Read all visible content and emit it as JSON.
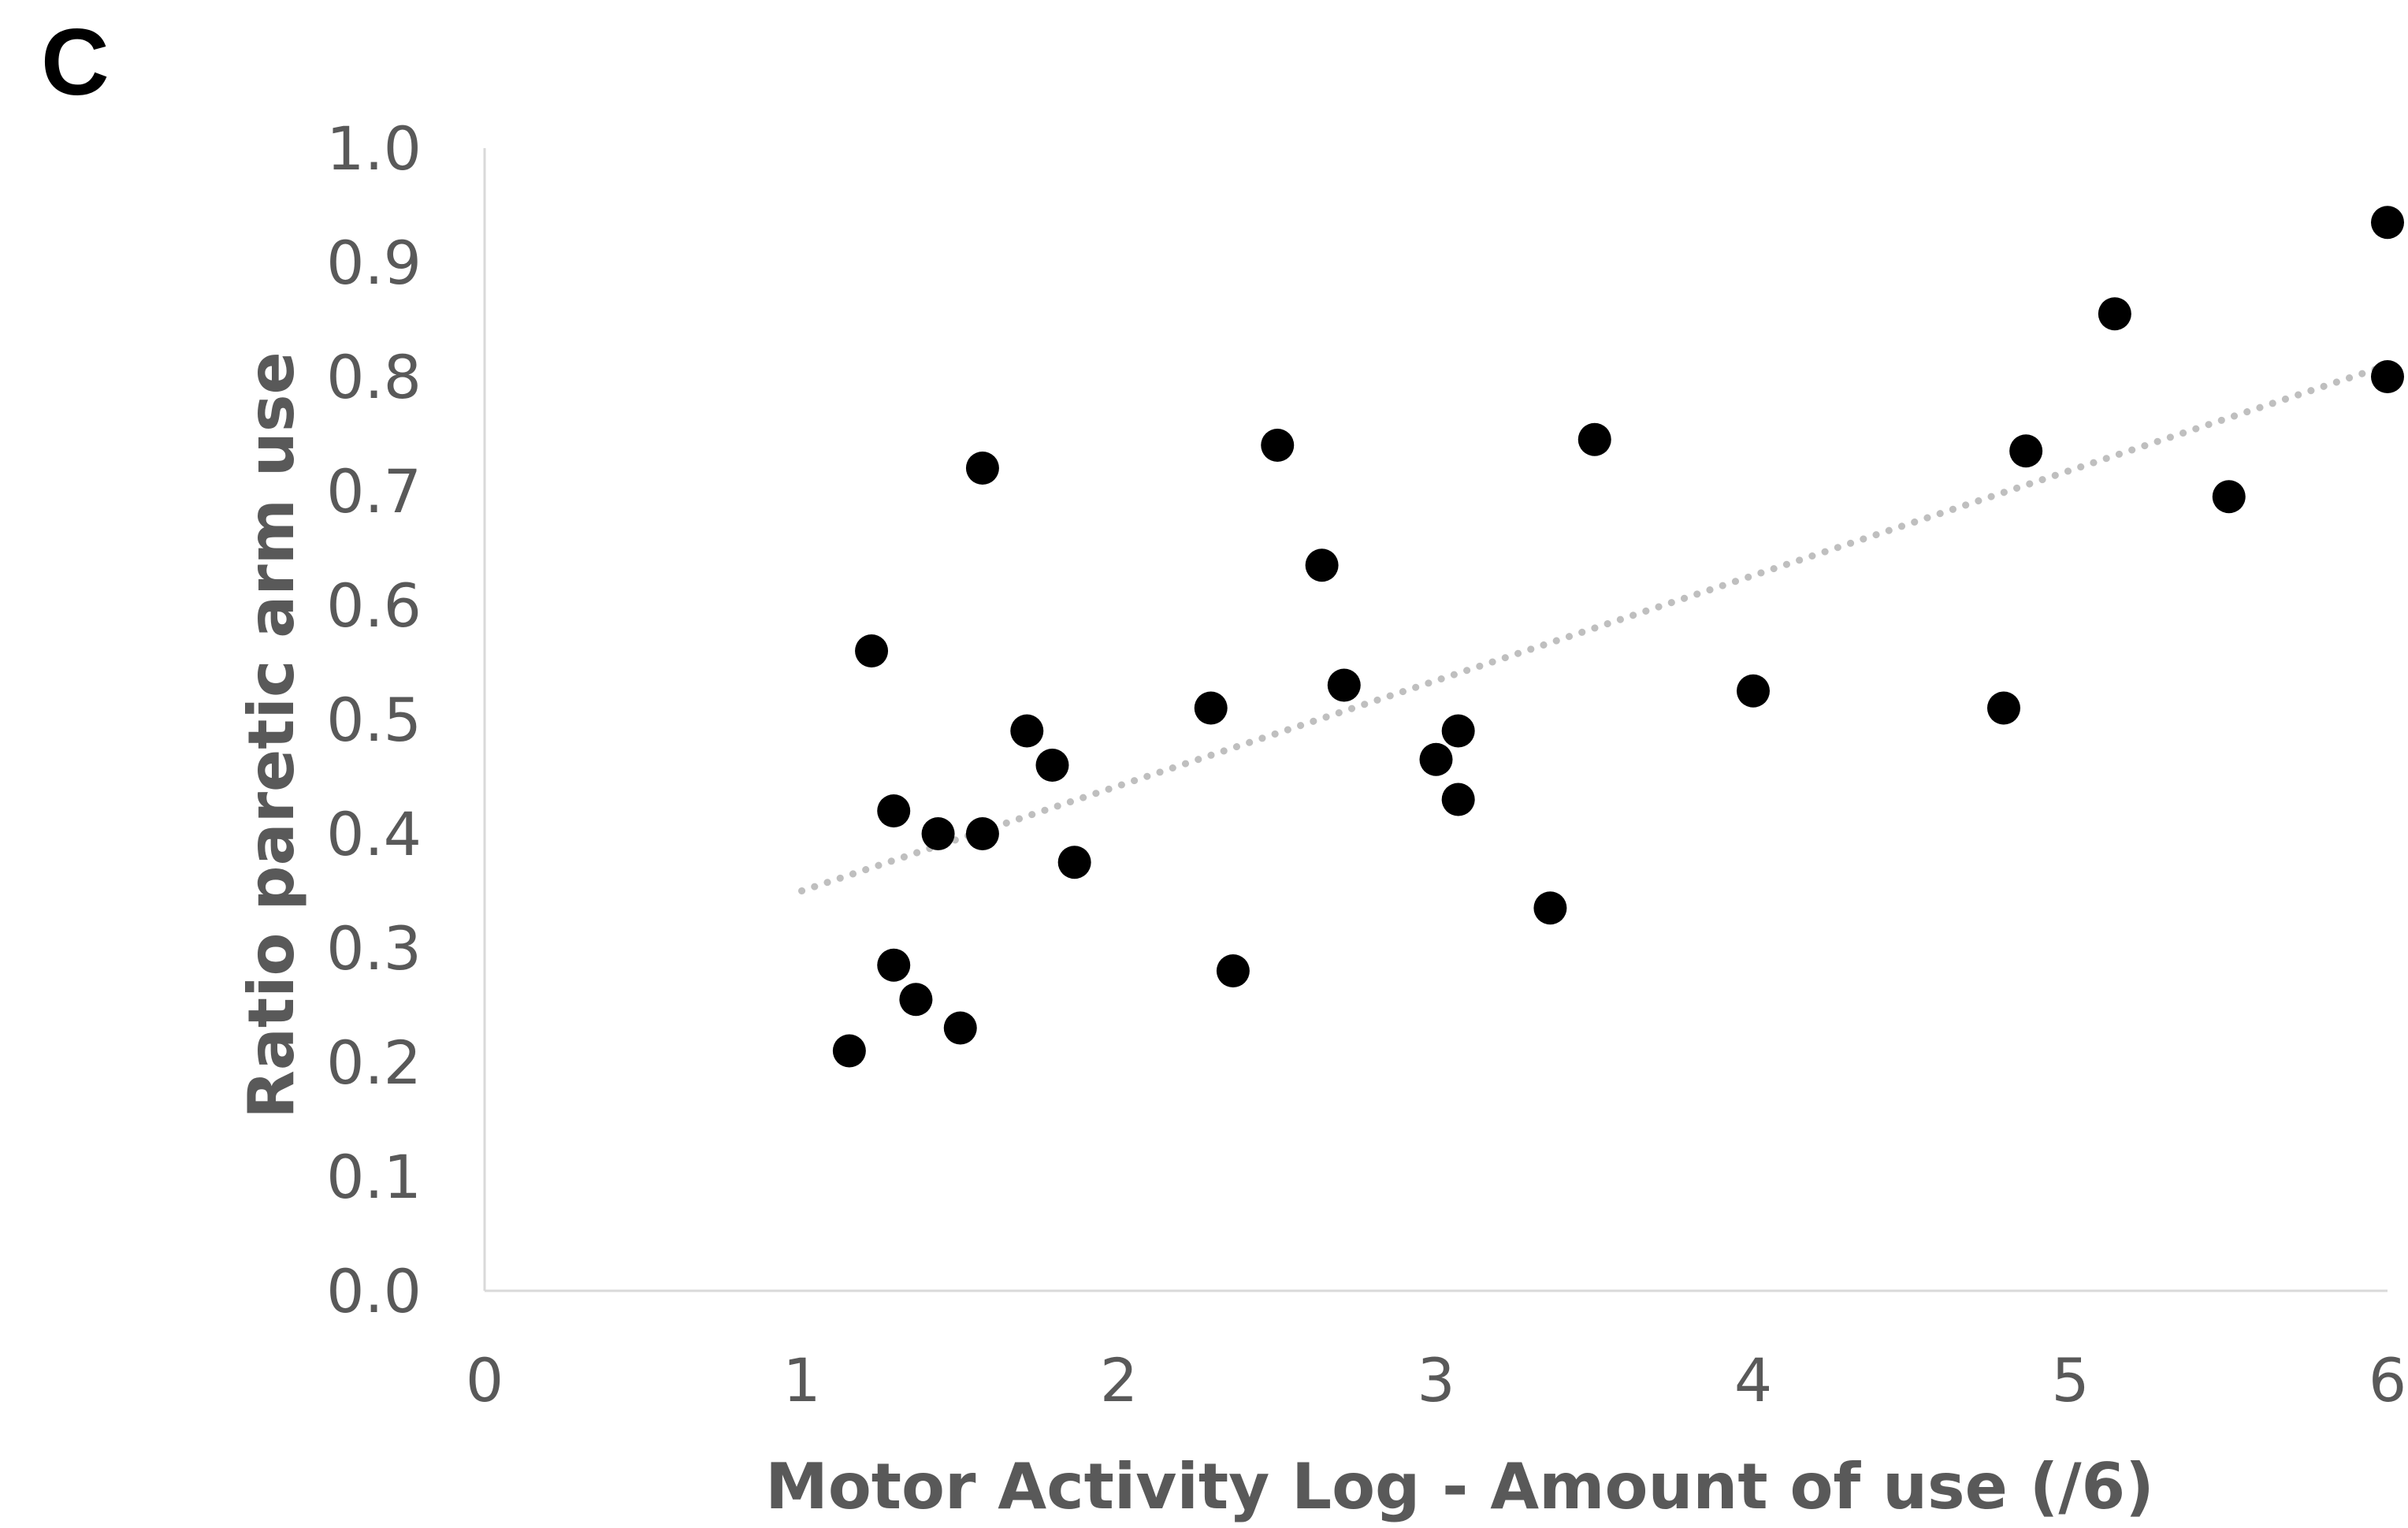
{
  "panel_label": "C",
  "colors": {
    "points": "#000000",
    "trendline": "#bfbfbf",
    "axis": "#d9d9d9",
    "text": "#595959"
  },
  "chart_data": {
    "type": "scatter",
    "title": "",
    "xlabel": "Motor Activity Log - Amount of use (/6)",
    "ylabel": "Ratio paretic arm use",
    "xlim": [
      0,
      6
    ],
    "ylim": [
      0.0,
      1.0
    ],
    "x_ticks": [
      "0",
      "1",
      "2",
      "3",
      "4",
      "5",
      "6"
    ],
    "y_ticks": [
      "0.0",
      "0.1",
      "0.2",
      "0.3",
      "0.4",
      "0.5",
      "0.6",
      "0.7",
      "0.8",
      "0.9",
      "1.0"
    ],
    "grid": false,
    "legend": "none",
    "points": [
      {
        "x": 1.15,
        "y": 0.21
      },
      {
        "x": 1.22,
        "y": 0.56
      },
      {
        "x": 1.29,
        "y": 0.42
      },
      {
        "x": 1.29,
        "y": 0.285
      },
      {
        "x": 1.36,
        "y": 0.255
      },
      {
        "x": 1.43,
        "y": 0.4
      },
      {
        "x": 1.5,
        "y": 0.23
      },
      {
        "x": 1.57,
        "y": 0.4
      },
      {
        "x": 1.57,
        "y": 0.72
      },
      {
        "x": 1.71,
        "y": 0.49
      },
      {
        "x": 1.79,
        "y": 0.46
      },
      {
        "x": 1.86,
        "y": 0.375
      },
      {
        "x": 2.29,
        "y": 0.51
      },
      {
        "x": 2.36,
        "y": 0.28
      },
      {
        "x": 2.5,
        "y": 0.74
      },
      {
        "x": 2.64,
        "y": 0.635
      },
      {
        "x": 2.71,
        "y": 0.53
      },
      {
        "x": 3.0,
        "y": 0.465
      },
      {
        "x": 3.07,
        "y": 0.49
      },
      {
        "x": 3.07,
        "y": 0.43
      },
      {
        "x": 3.36,
        "y": 0.335
      },
      {
        "x": 3.5,
        "y": 0.745
      },
      {
        "x": 4.0,
        "y": 0.525
      },
      {
        "x": 4.79,
        "y": 0.51
      },
      {
        "x": 4.86,
        "y": 0.735
      },
      {
        "x": 5.14,
        "y": 0.855
      },
      {
        "x": 5.5,
        "y": 0.695
      },
      {
        "x": 6.0,
        "y": 0.935
      },
      {
        "x": 6.0,
        "y": 0.8
      }
    ],
    "trendline": {
      "style": "dotted",
      "x": [
        1.0,
        6.0
      ],
      "y": [
        0.35,
        0.81
      ]
    }
  }
}
